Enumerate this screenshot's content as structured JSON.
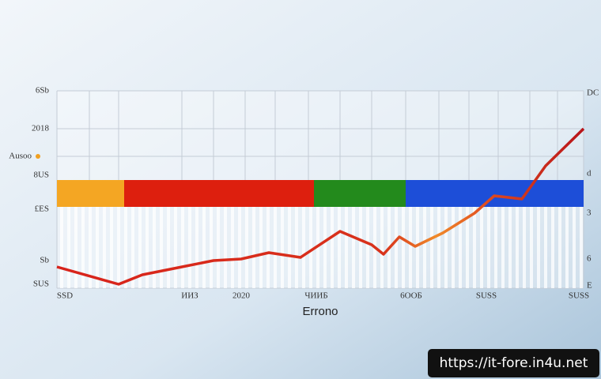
{
  "left_labels": [
    "6Sb",
    "2018",
    "Ausoo",
    "8US",
    "£ES",
    "Sb",
    "SUS"
  ],
  "right_labels": [
    "DC",
    "d",
    "3",
    "6",
    "E"
  ],
  "bottom_labels": [
    "SSD",
    "ИИЗ",
    "2020",
    "ЧИИБ",
    "6ООБ",
    "SUSS",
    "SUSS"
  ],
  "axis_title": "Errono",
  "watermark": "https://it-fore.in4u.net"
}
